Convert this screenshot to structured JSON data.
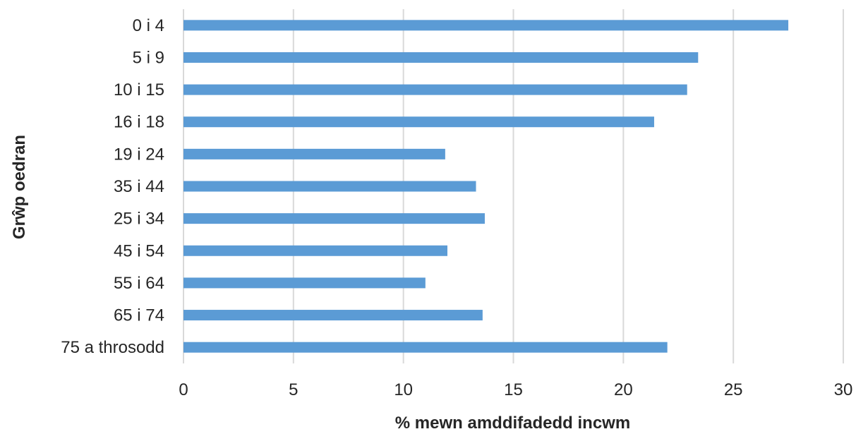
{
  "chart_data": {
    "type": "bar",
    "orientation": "horizontal",
    "categories": [
      "0 i 4",
      "5 i 9",
      "10 i 15",
      "16 i 18",
      "19 i 24",
      "35 i 44",
      "25 i 34",
      "45 i 54",
      "55 i 64",
      "65 i 74",
      "75 a throsodd"
    ],
    "values": [
      27.5,
      23.4,
      22.9,
      21.4,
      11.9,
      13.3,
      13.7,
      12.0,
      11.0,
      13.6,
      22.0
    ],
    "xlabel": "% mewn amddifadedd incwm",
    "ylabel": "Grŵp oedran",
    "xlim": [
      0,
      30
    ],
    "xticks": [
      "0",
      "5",
      "10",
      "15",
      "20",
      "25",
      "30"
    ],
    "grid": "vertical",
    "legend": "none",
    "bar_color": "#5b9bd5"
  }
}
